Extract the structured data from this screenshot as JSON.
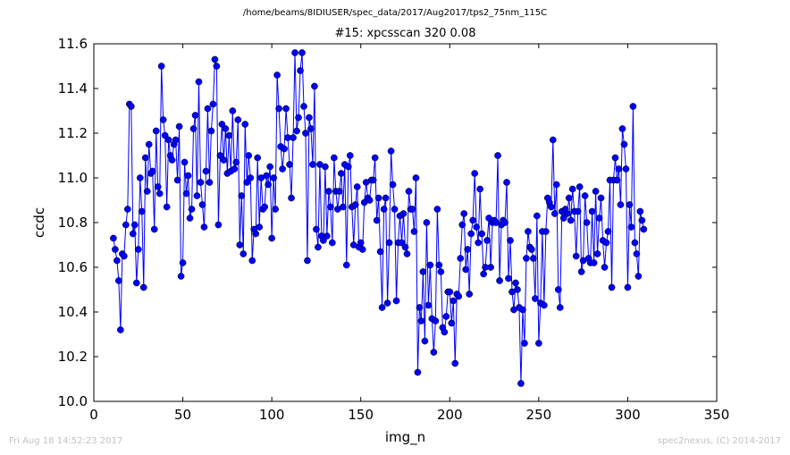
{
  "suptitle": "/home/beams/8IDIUSER/spec_data/2017/Aug2017/tps2_75nm_115C",
  "footer": {
    "left": "Fri Aug 18 14:52:23 2017",
    "right": "spec2nexus, (C) 2014-2017"
  },
  "chart_data": {
    "type": "line",
    "title": "#15: xpcsscan 320 0.08",
    "xlabel": "img_n",
    "ylabel": "ccdc",
    "xlim": [
      0,
      350
    ],
    "ylim": [
      10.0,
      11.6
    ],
    "xticks": [
      0,
      50,
      100,
      150,
      200,
      250,
      300,
      350
    ],
    "yticks": [
      10.0,
      10.2,
      10.4,
      10.6,
      10.8,
      11.0,
      11.2,
      11.4,
      11.6
    ],
    "grid": false,
    "marker": "circle",
    "color": "#0000ff",
    "x_start": 11,
    "y": [
      10.73,
      10.68,
      10.63,
      10.54,
      10.32,
      10.66,
      10.65,
      10.79,
      10.86,
      11.33,
      11.32,
      10.75,
      10.79,
      10.53,
      10.68,
      11.0,
      10.85,
      10.51,
      11.09,
      10.94,
      11.15,
      11.02,
      11.03,
      10.77,
      11.21,
      10.96,
      10.93,
      11.5,
      11.26,
      11.19,
      10.87,
      11.17,
      11.1,
      11.08,
      11.15,
      11.17,
      10.99,
      11.23,
      10.56,
      10.62,
      11.07,
      10.93,
      11.01,
      10.82,
      10.86,
      11.22,
      11.28,
      10.92,
      11.43,
      10.98,
      10.88,
      10.78,
      11.03,
      11.31,
      10.98,
      11.21,
      11.33,
      11.53,
      11.5,
      10.79,
      11.1,
      11.24,
      11.08,
      11.22,
      11.02,
      11.19,
      11.03,
      11.3,
      11.04,
      11.07,
      11.26,
      10.7,
      10.92,
      10.66,
      11.24,
      10.98,
      11.1,
      11.0,
      10.63,
      10.77,
      10.75,
      11.09,
      10.78,
      11.0,
      10.86,
      10.87,
      11.01,
      10.97,
      11.05,
      10.73,
      11.0,
      10.86,
      11.46,
      11.31,
      11.14,
      11.04,
      11.13,
      11.31,
      11.18,
      11.06,
      10.91,
      11.18,
      11.56,
      11.21,
      11.27,
      11.48,
      11.56,
      11.32,
      11.2,
      10.63,
      11.27,
      11.22,
      11.06,
      11.41,
      10.77,
      10.69,
      11.06,
      10.74,
      10.72,
      11.05,
      10.74,
      10.94,
      10.87,
      10.71,
      11.09,
      10.94,
      10.86,
      10.94,
      11.02,
      10.87,
      11.06,
      10.61,
      11.05,
      11.1,
      10.87,
      10.7,
      10.88,
      10.96,
      10.69,
      10.71,
      10.68,
      10.89,
      10.98,
      10.91,
      10.9,
      10.99,
      10.99,
      11.09,
      10.81,
      10.91,
      10.67,
      10.42,
      10.86,
      10.91,
      10.44,
      10.71,
      11.12,
      10.97,
      10.86,
      10.45,
      10.71,
      10.83,
      10.71,
      10.84,
      10.69,
      10.66,
      10.94,
      10.86,
      10.86,
      10.76,
      11.0,
      10.13,
      10.42,
      10.36,
      10.58,
      10.27,
      10.8,
      10.43,
      10.61,
      10.37,
      10.22,
      10.36,
      10.86,
      10.61,
      10.58,
      10.33,
      10.31,
      10.38,
      10.49,
      10.49,
      10.35,
      10.45,
      10.17,
      10.48,
      10.47,
      10.64,
      10.79,
      10.84,
      10.59,
      10.68,
      10.48,
      10.75,
      10.81,
      11.02,
      10.78,
      10.71,
      10.95,
      10.75,
      10.57,
      10.6,
      10.72,
      10.82,
      10.6,
      10.8,
      10.81,
      10.8,
      11.1,
      10.54,
      10.79,
      10.81,
      10.8,
      10.98,
      10.55,
      10.72,
      10.49,
      10.41,
      10.53,
      10.5,
      10.42,
      10.08,
      10.41,
      10.26,
      10.64,
      10.76,
      10.69,
      10.68,
      10.64,
      10.46,
      10.83,
      10.26,
      10.44,
      10.76,
      10.43,
      10.76,
      10.91,
      10.89,
      10.87,
      11.17,
      10.84,
      10.97,
      10.5,
      10.42,
      10.85,
      10.82,
      10.86,
      10.84,
      10.91,
      10.81,
      10.95,
      10.85,
      10.65,
      10.85,
      10.96,
      10.58,
      10.63,
      10.92,
      10.8,
      10.64,
      10.62,
      10.85,
      10.62,
      10.94,
      10.66,
      10.82,
      10.91,
      10.72,
      10.6,
      10.71,
      10.76,
      10.99,
      10.51,
      10.99,
      11.09,
      10.99,
      11.04,
      10.88,
      11.22,
      11.15,
      11.04,
      10.51,
      10.88,
      10.78,
      11.32,
      10.71,
      10.66,
      10.56,
      10.85,
      10.81,
      10.77
    ]
  }
}
